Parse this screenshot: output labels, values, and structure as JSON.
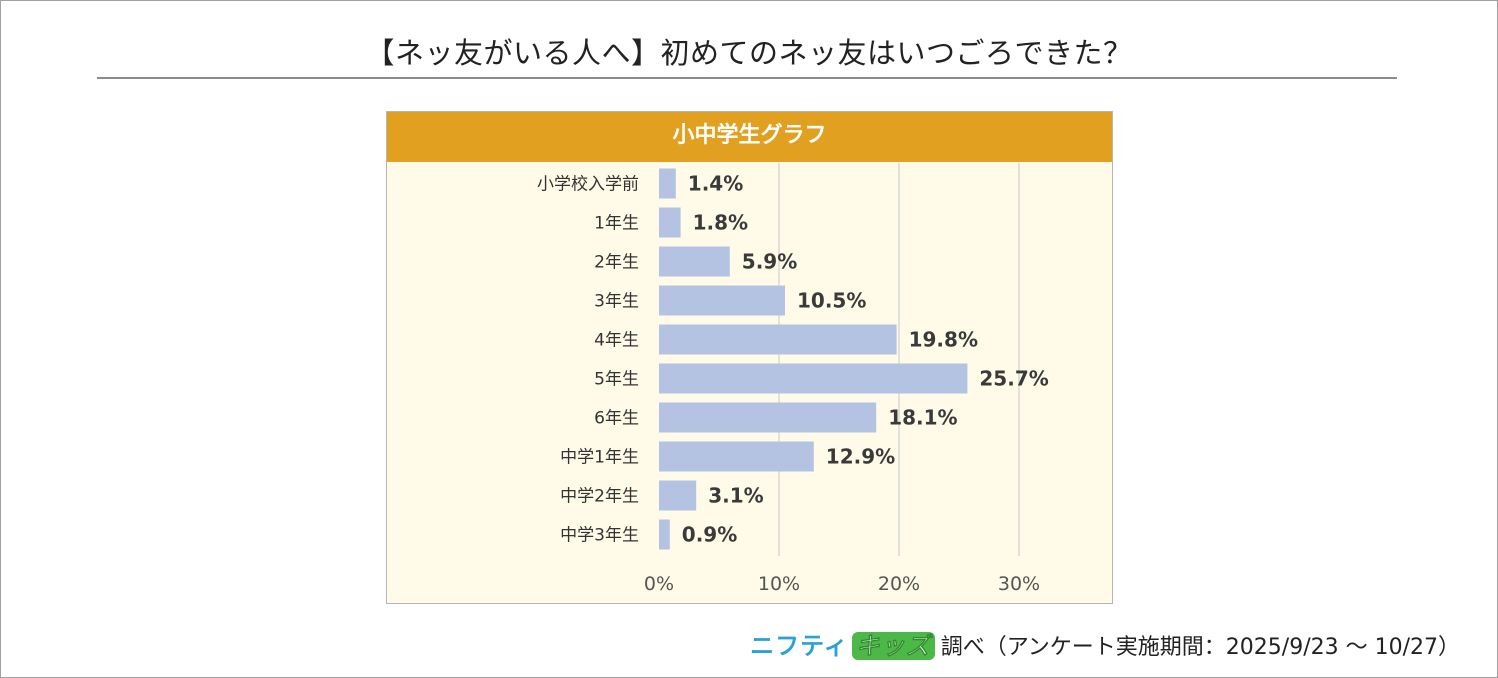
{
  "page": {
    "title": "【ネッ友がいる人へ】初めてのネッ友はいつごろできた？"
  },
  "panel": {
    "header": "小中学生グラフ"
  },
  "footer": {
    "brand_part1": "ニフティ",
    "brand_part2": "キッズ",
    "text": "調べ（アンケート実施期間：2025/9/23 ～ 10/27）"
  },
  "colors": {
    "bar": "#b4c3e2",
    "header": "#e2a021",
    "panel_bg": "#fffbe8",
    "grid": "#d9d9d9"
  },
  "chart_data": {
    "type": "bar",
    "orientation": "horizontal",
    "categories": [
      "小学校入学前",
      "1年生",
      "2年生",
      "3年生",
      "4年生",
      "5年生",
      "6年生",
      "中学1年生",
      "中学2年生",
      "中学3年生"
    ],
    "values": [
      1.4,
      1.8,
      5.9,
      10.5,
      19.8,
      25.7,
      18.1,
      12.9,
      3.1,
      0.9
    ],
    "data_labels": [
      "1.4%",
      "1.8%",
      "5.9%",
      "10.5%",
      "19.8%",
      "25.7%",
      "18.1%",
      "12.9%",
      "3.1%",
      "0.9%"
    ],
    "xticks": [
      0,
      10,
      20,
      30
    ],
    "xtick_labels": [
      "0%",
      "10%",
      "20%",
      "30%"
    ],
    "xlim": [
      0,
      30
    ],
    "grid": true,
    "legend": "none",
    "title": "【ネッ友がいる人へ】初めてのネッ友はいつごろできた？"
  }
}
